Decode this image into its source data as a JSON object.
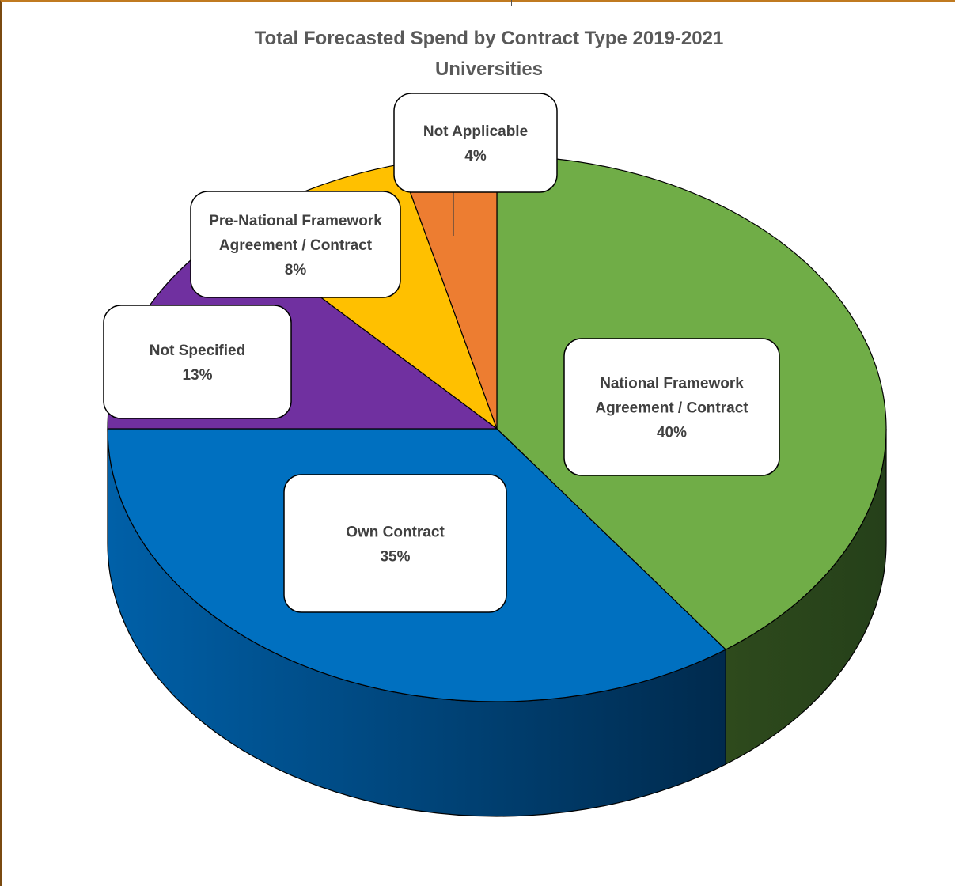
{
  "chart_data": {
    "type": "pie",
    "style": "3d",
    "title": "Total Forecasted Spend by Contract Type 2019-2021",
    "subtitle": "Universities",
    "slices": [
      {
        "label": "National Framework Agreement / Contract",
        "label_lines": [
          "National Framework",
          "Agreement / Contract"
        ],
        "percent_label": "40%",
        "value": 40,
        "color": "#70AD47",
        "side_color": "#2E4A1C"
      },
      {
        "label": "Own Contract",
        "label_lines": [
          "Own Contract"
        ],
        "percent_label": "35%",
        "value": 35,
        "color": "#0070C0",
        "side_color": "#004C8A"
      },
      {
        "label": "Not Specified",
        "label_lines": [
          "Not Specified"
        ],
        "percent_label": "13%",
        "value": 13,
        "color": "#7030A0",
        "side_color": "#4A1F6B"
      },
      {
        "label": "Pre-National Framework Agreement / Contract",
        "label_lines": [
          "Pre-National Framework",
          "Agreement / Contract"
        ],
        "percent_label": "8%",
        "value": 8,
        "color": "#FFC000",
        "side_color": "#B38600"
      },
      {
        "label": "Not Applicable",
        "label_lines": [
          "Not Applicable"
        ],
        "percent_label": "4%",
        "value": 4,
        "color": "#ED7D31",
        "side_color": "#A5561F"
      }
    ],
    "legend": "none"
  }
}
